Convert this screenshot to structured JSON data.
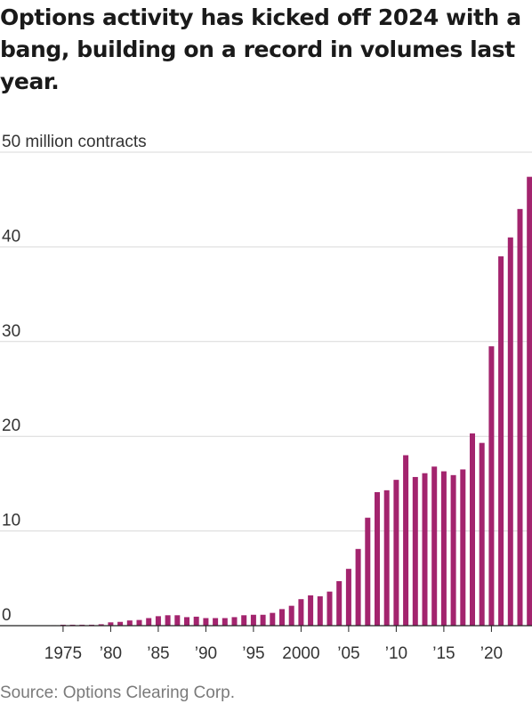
{
  "title": "Options activity has kicked off 2024 with a bang, building on a record in volumes last year.",
  "source": "Source: Options Clearing Corp.",
  "chart_data": {
    "type": "bar",
    "title": "Options activity has kicked off 2024 with a bang, building on a record in volumes last year.",
    "ylabel": "million contracts",
    "ylim": [
      0,
      50
    ],
    "y_ticks": [
      {
        "value": 50,
        "label": "50 million contracts"
      },
      {
        "value": 40,
        "label": "40"
      },
      {
        "value": 30,
        "label": "30"
      },
      {
        "value": 20,
        "label": "20"
      },
      {
        "value": 10,
        "label": "10"
      },
      {
        "value": 0,
        "label": "0"
      }
    ],
    "x_ticks": [
      {
        "year": 1975,
        "label": "1975"
      },
      {
        "year": 1980,
        "label": "’80"
      },
      {
        "year": 1985,
        "label": "’85"
      },
      {
        "year": 1990,
        "label": "’90"
      },
      {
        "year": 1995,
        "label": "’95"
      },
      {
        "year": 2000,
        "label": "2000"
      },
      {
        "year": 2005,
        "label": "’05"
      },
      {
        "year": 2010,
        "label": "’10"
      },
      {
        "year": 2015,
        "label": "’15"
      },
      {
        "year": 2020,
        "label": "’20"
      }
    ],
    "grid": true,
    "color": "#a3246e",
    "x": [
      1973,
      1974,
      1975,
      1976,
      1977,
      1978,
      1979,
      1980,
      1981,
      1982,
      1983,
      1984,
      1985,
      1986,
      1987,
      1988,
      1989,
      1990,
      1991,
      1992,
      1993,
      1994,
      1995,
      1996,
      1997,
      1998,
      1999,
      2000,
      2001,
      2002,
      2003,
      2004,
      2005,
      2006,
      2007,
      2008,
      2009,
      2010,
      2011,
      2012,
      2013,
      2014,
      2015,
      2016,
      2017,
      2018,
      2019,
      2020,
      2021,
      2022,
      2023,
      2024
    ],
    "values": [
      0.01,
      0.05,
      0.1,
      0.1,
      0.1,
      0.1,
      0.15,
      0.35,
      0.4,
      0.55,
      0.6,
      0.8,
      1.0,
      1.1,
      1.1,
      0.9,
      0.95,
      0.8,
      0.8,
      0.8,
      0.9,
      1.1,
      1.15,
      1.15,
      1.35,
      1.75,
      2.1,
      2.8,
      3.2,
      3.1,
      3.6,
      4.7,
      6.0,
      8.1,
      11.4,
      14.1,
      14.3,
      15.4,
      18.0,
      15.7,
      16.1,
      16.8,
      16.3,
      15.9,
      16.5,
      20.3,
      19.3,
      29.5,
      39.0,
      41.0,
      44.0,
      47.4
    ]
  }
}
